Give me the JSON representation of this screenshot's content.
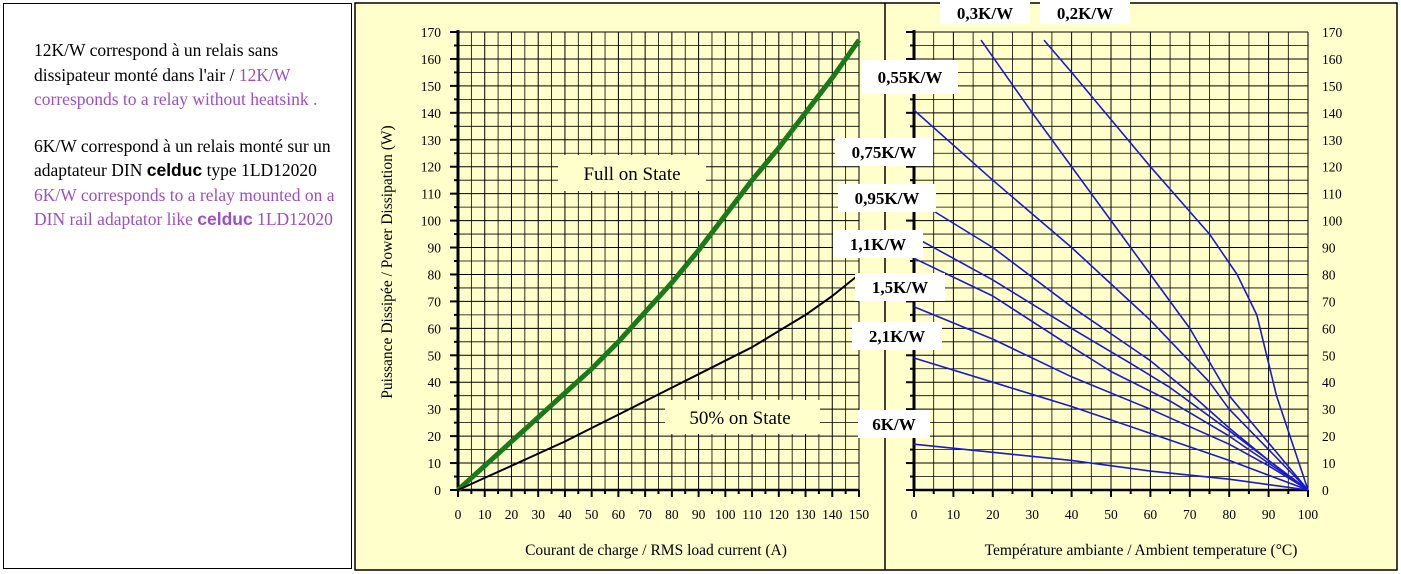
{
  "notes": {
    "p1_fr": "12K/W correspond à un relais sans dissipateur monté dans l'air /",
    "p1_en": "12K/W corresponds to a relay without heatsink .",
    "p2_fr_a": "6K/W correspond à un relais monté sur un adaptateur DIN",
    "p2_brand": "celduc",
    "p2_fr_b": "type 1LD12020",
    "p2_en_a": "6K/W corresponds to a relay mounted on a DIN rail adaptator like",
    "p2_en_brand": "celduc",
    "p2_en_b": "1LD12020"
  },
  "colors": {
    "panel_bg": "#ffffcc",
    "grid": "#000000",
    "full_on": "#1a7a1a",
    "half_on": "#000000",
    "thermal": "#1a1ad0",
    "notes_en": "#9b4fc6"
  },
  "chart_data": [
    {
      "type": "line",
      "xlabel": "Courant de charge / RMS load current (A)",
      "ylabel": "Puissance Dissipée / Power Dissipation (W)",
      "xlim": [
        0,
        150
      ],
      "ylim": [
        0,
        170
      ],
      "xticks": [
        "0",
        "10",
        "20",
        "30",
        "40",
        "50",
        "60",
        "70",
        "80",
        "90",
        "100",
        "110",
        "120",
        "130",
        "140",
        "150"
      ],
      "yticks": [
        "0",
        "10",
        "20",
        "30",
        "40",
        "50",
        "60",
        "70",
        "80",
        "90",
        "100",
        "110",
        "120",
        "130",
        "140",
        "150",
        "160",
        "170"
      ],
      "grid": true,
      "series": [
        {
          "name": "Full on State",
          "x": [
            0,
            10,
            20,
            30,
            40,
            50,
            60,
            70,
            80,
            90,
            100,
            110,
            120,
            130,
            140,
            150
          ],
          "y": [
            0,
            9,
            18,
            27,
            36,
            45,
            55,
            66,
            77,
            89,
            102,
            115,
            127,
            140,
            153,
            167
          ]
        },
        {
          "name": "50% on State",
          "x": [
            0,
            10,
            20,
            30,
            40,
            50,
            60,
            70,
            80,
            90,
            100,
            110,
            120,
            130,
            140,
            150
          ],
          "y": [
            0,
            4.5,
            9,
            13.5,
            18,
            23,
            28,
            33,
            38,
            43,
            48,
            53,
            59,
            65,
            72,
            80
          ]
        }
      ]
    },
    {
      "type": "line",
      "xlabel": "Température ambiante / Ambient temperature (°C)",
      "ylabel": "",
      "xlim": [
        0,
        100
      ],
      "ylim": [
        0,
        170
      ],
      "xticks": [
        "0",
        "10",
        "20",
        "30",
        "40",
        "50",
        "60",
        "70",
        "80",
        "90",
        "100"
      ],
      "yticks": [
        "0",
        "10",
        "20",
        "30",
        "40",
        "50",
        "60",
        "70",
        "80",
        "90",
        "100",
        "110",
        "120",
        "130",
        "140",
        "150",
        "160",
        "170"
      ],
      "grid": true,
      "series": [
        {
          "name": "0,3K/W",
          "x": [
            17,
            30,
            50,
            70,
            80,
            100
          ],
          "y": [
            167,
            140,
            100,
            60,
            35,
            0
          ]
        },
        {
          "name": "0,2K/W",
          "x": [
            33,
            40,
            60,
            75,
            82,
            87,
            92,
            100
          ],
          "y": [
            167,
            155,
            120,
            95,
            80,
            65,
            35,
            0
          ]
        },
        {
          "name": "0,55K/W",
          "x": [
            0,
            20,
            40,
            60,
            75,
            80,
            90,
            100
          ],
          "y": [
            141,
            115,
            90,
            63,
            40,
            30,
            15,
            0
          ]
        },
        {
          "name": "0,75K/W",
          "x": [
            0,
            20,
            40,
            60,
            70,
            80,
            90,
            100
          ],
          "y": [
            108,
            90,
            68,
            48,
            36,
            23,
            11,
            0
          ]
        },
        {
          "name": "0,95K/W",
          "x": [
            0,
            20,
            40,
            55,
            65,
            80,
            90,
            100
          ],
          "y": [
            94,
            78,
            60,
            47,
            38,
            22,
            11,
            0
          ]
        },
        {
          "name": "1,1K/W",
          "x": [
            0,
            20,
            38,
            50,
            65,
            80,
            90,
            100
          ],
          "y": [
            86,
            72,
            55,
            44,
            33,
            20,
            10,
            0
          ]
        },
        {
          "name": "1,5K/W",
          "x": [
            0,
            20,
            40,
            60,
            80,
            90,
            100
          ],
          "y": [
            68,
            56,
            42,
            30,
            17,
            9,
            0
          ]
        },
        {
          "name": "2,1K/W",
          "x": [
            0,
            20,
            40,
            60,
            80,
            100
          ],
          "y": [
            49,
            40,
            31,
            21,
            11,
            0
          ]
        },
        {
          "name": "6K/W",
          "x": [
            0,
            20,
            40,
            60,
            80,
            100
          ],
          "y": [
            17,
            14,
            11,
            7,
            4,
            0
          ]
        }
      ]
    }
  ]
}
